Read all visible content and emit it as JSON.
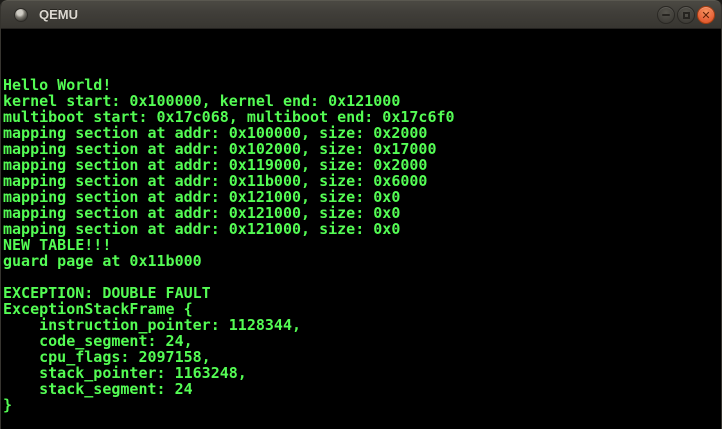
{
  "window": {
    "title": "QEMU",
    "controls": [
      {
        "name": "minimize"
      },
      {
        "name": "maximize"
      },
      {
        "name": "close"
      }
    ]
  },
  "colors": {
    "terminal_text": "#54fc54",
    "terminal_bg": "#000000",
    "titlebar_bg": "#403e39",
    "close_button": "#e8643a"
  },
  "terminal": {
    "lines": [
      "",
      "",
      "",
      "Hello World!",
      "kernel start: 0x100000, kernel end: 0x121000",
      "multiboot start: 0x17c068, multiboot end: 0x17c6f0",
      "mapping section at addr: 0x100000, size: 0x2000",
      "mapping section at addr: 0x102000, size: 0x17000",
      "mapping section at addr: 0x119000, size: 0x2000",
      "mapping section at addr: 0x11b000, size: 0x6000",
      "mapping section at addr: 0x121000, size: 0x0",
      "mapping section at addr: 0x121000, size: 0x0",
      "mapping section at addr: 0x121000, size: 0x0",
      "NEW TABLE!!!",
      "guard page at 0x11b000",
      "",
      "EXCEPTION: DOUBLE FAULT",
      "ExceptionStackFrame {",
      "    instruction_pointer: 1128344,",
      "    code_segment: 24,",
      "    cpu_flags: 2097158,",
      "    stack_pointer: 1163248,",
      "    stack_segment: 24",
      "}"
    ]
  }
}
